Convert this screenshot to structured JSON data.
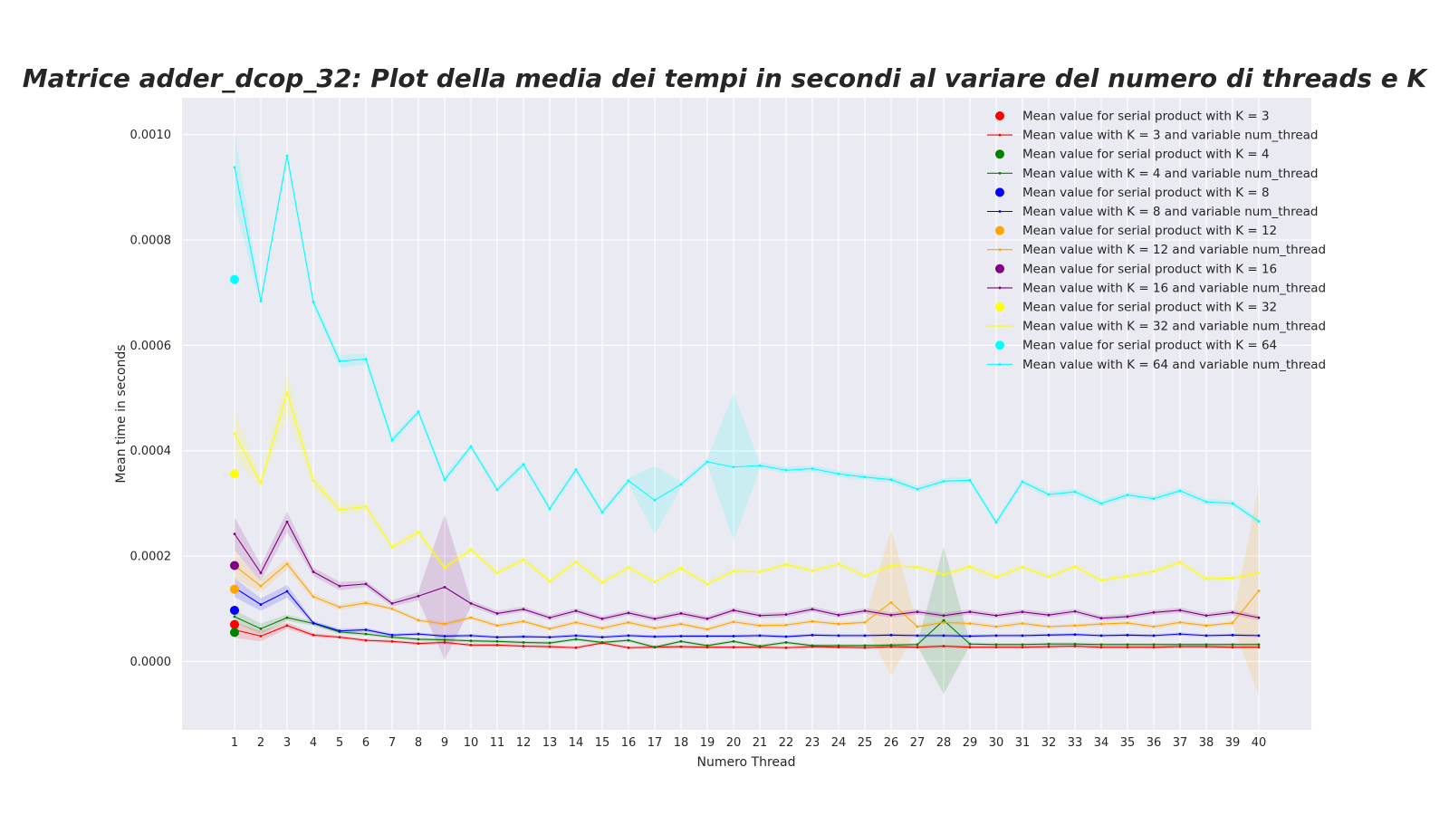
{
  "chart_data": {
    "type": "line",
    "title": "Matrice adder_dcop_32: Plot della media dei tempi in secondi al variare del numero di threads e K",
    "xlabel": "Numero Thread",
    "ylabel": "Mean time in seconds",
    "xlim": [
      -1,
      42
    ],
    "ylim": [
      -0.00013,
      0.00107
    ],
    "yticks": [
      0.0,
      0.0002,
      0.0004,
      0.0006,
      0.0008,
      0.001
    ],
    "ytick_labels": [
      "0.0000",
      "0.0002",
      "0.0004",
      "0.0006",
      "0.0008",
      "0.0010"
    ],
    "x": [
      1,
      2,
      3,
      4,
      5,
      6,
      7,
      8,
      9,
      10,
      11,
      12,
      13,
      14,
      15,
      16,
      17,
      18,
      19,
      20,
      21,
      22,
      23,
      24,
      25,
      26,
      27,
      28,
      29,
      30,
      31,
      32,
      33,
      34,
      35,
      36,
      37,
      38,
      39,
      40
    ],
    "grid": true,
    "legend_position": "top-right",
    "serial": [
      {
        "name": "Mean value for serial product with K = 3",
        "color": "#ff0000",
        "x": 1,
        "y": 7e-05
      },
      {
        "name": "Mean value for serial product with K = 4",
        "color": "#008000",
        "x": 1,
        "y": 5.5e-05
      },
      {
        "name": "Mean value for serial product with K = 8",
        "color": "#0000ff",
        "x": 1,
        "y": 9.7e-05
      },
      {
        "name": "Mean value for serial product with K = 12",
        "color": "#ffa500",
        "x": 1,
        "y": 0.000137
      },
      {
        "name": "Mean value for serial product with K = 16",
        "color": "#800080",
        "x": 1,
        "y": 0.000182
      },
      {
        "name": "Mean value for serial product with K = 32",
        "color": "#ffff00",
        "x": 1,
        "y": 0.000356
      },
      {
        "name": "Mean value for serial product with K = 64",
        "color": "#00ffff",
        "x": 1,
        "y": 0.000725
      }
    ],
    "series": [
      {
        "name": "Mean value with K = 3 and variable num_thread",
        "color": "#ff0000",
        "values": [
          6e-05,
          4.8e-05,
          6.8e-05,
          5e-05,
          4.6e-05,
          4e-05,
          3.8e-05,
          3.4e-05,
          3.6e-05,
          3.1e-05,
          3.1e-05,
          2.9e-05,
          2.8e-05,
          2.6e-05,
          3.5e-05,
          2.6e-05,
          2.7e-05,
          2.8e-05,
          2.7e-05,
          2.7e-05,
          2.7e-05,
          2.6e-05,
          2.8e-05,
          2.7e-05,
          2.6e-05,
          2.8e-05,
          2.7e-05,
          2.9e-05,
          2.7e-05,
          2.7e-05,
          2.7e-05,
          2.8e-05,
          2.9e-05,
          2.7e-05,
          2.7e-05,
          2.7e-05,
          2.8e-05,
          2.8e-05,
          2.7e-05,
          2.7e-05
        ],
        "band": [
          1.5e-05,
          1e-05,
          6e-06,
          4e-06,
          3e-06,
          3e-06,
          3e-06,
          3e-06,
          3e-06,
          3e-06,
          3e-06,
          3e-06,
          3e-06,
          3e-06,
          3e-06,
          3e-06,
          3e-06,
          3e-06,
          3e-06,
          3e-06,
          3e-06,
          3e-06,
          3e-06,
          3e-06,
          3e-06,
          3e-06,
          3e-06,
          3e-06,
          3e-06,
          3e-06,
          3e-06,
          3e-06,
          3e-06,
          3e-06,
          3e-06,
          3e-06,
          3e-06,
          3e-06,
          3e-06,
          3e-06
        ]
      },
      {
        "name": "Mean value with K = 4 and variable num_thread",
        "color": "#008000",
        "values": [
          8.5e-05,
          6.2e-05,
          8.3e-05,
          7.2e-05,
          5.6e-05,
          5.2e-05,
          4.6e-05,
          4.2e-05,
          4.1e-05,
          3.9e-05,
          3.8e-05,
          3.6e-05,
          3.5e-05,
          4.2e-05,
          3.6e-05,
          4e-05,
          2.7e-05,
          3.8e-05,
          3e-05,
          3.8e-05,
          2.9e-05,
          3.6e-05,
          3e-05,
          3e-05,
          3e-05,
          3.1e-05,
          3.2e-05,
          7.8e-05,
          3.3e-05,
          3.2e-05,
          3.2e-05,
          3.3e-05,
          3.3e-05,
          3.2e-05,
          3.2e-05,
          3.2e-05,
          3.2e-05,
          3.2e-05,
          3.2e-05,
          3.2e-05
        ],
        "band": [
          1.2e-05,
          1e-05,
          6e-06,
          4e-06,
          4e-06,
          3e-06,
          3e-06,
          3e-06,
          3e-06,
          3e-06,
          3e-06,
          3e-06,
          3e-06,
          3e-06,
          3e-06,
          3e-06,
          3e-06,
          3e-06,
          3e-06,
          3e-06,
          3e-06,
          3e-06,
          3e-06,
          3e-06,
          3e-06,
          3e-06,
          3e-06,
          0.00014,
          3e-06,
          3e-06,
          3e-06,
          3e-06,
          3e-06,
          3e-06,
          3e-06,
          3e-06,
          3e-06,
          3e-06,
          3e-06,
          3e-06
        ]
      },
      {
        "name": "Mean value with K = 8 and variable num_thread",
        "color": "#0000ff",
        "values": [
          0.00014,
          0.000108,
          0.000133,
          7.3e-05,
          5.8e-05,
          6e-05,
          5e-05,
          5.2e-05,
          4.8e-05,
          4.9e-05,
          4.6e-05,
          4.7e-05,
          4.6e-05,
          4.9e-05,
          4.6e-05,
          4.9e-05,
          4.7e-05,
          4.8e-05,
          4.8e-05,
          4.8e-05,
          4.9e-05,
          4.7e-05,
          5e-05,
          4.9e-05,
          4.9e-05,
          5e-05,
          4.9e-05,
          4.9e-05,
          4.8e-05,
          4.9e-05,
          4.9e-05,
          5e-05,
          5.1e-05,
          4.9e-05,
          5e-05,
          4.9e-05,
          5.2e-05,
          4.9e-05,
          5e-05,
          4.9e-05
        ],
        "band": [
          1.8e-05,
          1.2e-05,
          1.2e-05,
          4e-06,
          4e-06,
          4e-06,
          3e-06,
          3e-06,
          3e-06,
          3e-06,
          3e-06,
          3e-06,
          3e-06,
          3e-06,
          3e-06,
          3e-06,
          3e-06,
          3e-06,
          3e-06,
          3e-06,
          3e-06,
          3e-06,
          3e-06,
          3e-06,
          3e-06,
          3e-06,
          3e-06,
          3e-06,
          3e-06,
          3e-06,
          3e-06,
          3e-06,
          3e-06,
          3e-06,
          3e-06,
          3e-06,
          3e-06,
          3e-06,
          3e-06,
          3e-06
        ]
      },
      {
        "name": "Mean value with K = 12 and variable num_thread",
        "color": "#ffa500",
        "values": [
          0.000182,
          0.000143,
          0.000185,
          0.000123,
          0.000103,
          0.000111,
          0.0001,
          7.8e-05,
          7.1e-05,
          8.3e-05,
          6.8e-05,
          7.6e-05,
          6.2e-05,
          7.4e-05,
          6.3e-05,
          7.4e-05,
          6.3e-05,
          7.1e-05,
          6.1e-05,
          7.5e-05,
          6.8e-05,
          6.9e-05,
          7.6e-05,
          7.1e-05,
          7.4e-05,
          0.000112,
          6.6e-05,
          7.4e-05,
          7.2e-05,
          6.6e-05,
          7.2e-05,
          6.6e-05,
          6.8e-05,
          7.1e-05,
          7.3e-05,
          6.6e-05,
          7.4e-05,
          6.8e-05,
          7.3e-05,
          0.000134
        ],
        "band": [
          2.5e-05,
          1.2e-05,
          1e-05,
          6e-06,
          5e-06,
          5e-06,
          4e-06,
          4e-06,
          4e-06,
          4e-06,
          4e-06,
          4e-06,
          4e-06,
          4e-06,
          4e-06,
          4e-06,
          4e-06,
          4e-06,
          4e-06,
          4e-06,
          4e-06,
          4e-06,
          4e-06,
          4e-06,
          4e-06,
          0.00014,
          4e-06,
          4e-06,
          4e-06,
          4e-06,
          4e-06,
          4e-06,
          4e-06,
          4e-06,
          4e-06,
          4e-06,
          4e-06,
          4e-06,
          4e-06,
          0.0002
        ]
      },
      {
        "name": "Mean value with K = 16 and variable num_thread",
        "color": "#800080",
        "values": [
          0.000242,
          0.000168,
          0.000265,
          0.00017,
          0.000143,
          0.000147,
          0.00011,
          0.000124,
          0.000141,
          0.00011,
          9.1e-05,
          9.9e-05,
          8.3e-05,
          9.6e-05,
          8.1e-05,
          9.2e-05,
          8.1e-05,
          9.1e-05,
          8.1e-05,
          9.7e-05,
          8.7e-05,
          8.9e-05,
          9.9e-05,
          8.8e-05,
          9.6e-05,
          8.8e-05,
          9.4e-05,
          8.7e-05,
          9.4e-05,
          8.7e-05,
          9.4e-05,
          8.8e-05,
          9.5e-05,
          8.2e-05,
          8.5e-05,
          9.3e-05,
          9.7e-05,
          8.7e-05,
          9.3e-05,
          8.3e-05
        ],
        "band": [
          3.2e-05,
          1.5e-05,
          2e-05,
          8e-06,
          8e-06,
          6e-06,
          6e-06,
          8e-06,
          0.000138,
          6e-06,
          5e-06,
          5e-06,
          5e-06,
          5e-06,
          5e-06,
          5e-06,
          5e-06,
          5e-06,
          5e-06,
          5e-06,
          5e-06,
          5e-06,
          5e-06,
          5e-06,
          5e-06,
          5e-06,
          5e-06,
          5e-06,
          5e-06,
          5e-06,
          5e-06,
          5e-06,
          5e-06,
          5e-06,
          5e-06,
          5e-06,
          5e-06,
          5e-06,
          5e-06,
          5e-06
        ]
      },
      {
        "name": "Mean value with K = 32 and variable num_thread",
        "color": "#ffff00",
        "values": [
          0.000432,
          0.000339,
          0.00051,
          0.000343,
          0.000288,
          0.000294,
          0.000217,
          0.000245,
          0.000178,
          0.000212,
          0.000168,
          0.000193,
          0.000152,
          0.000189,
          0.00015,
          0.000178,
          0.000151,
          0.000177,
          0.000147,
          0.000171,
          0.00017,
          0.000184,
          0.000172,
          0.000185,
          0.000162,
          0.000182,
          0.000179,
          0.000165,
          0.00018,
          0.00016,
          0.000179,
          0.000161,
          0.00018,
          0.000154,
          0.000162,
          0.000171,
          0.000188,
          0.000157,
          0.000158,
          0.000168
        ],
        "band": [
          4.5e-05,
          1e-05,
          4e-05,
          1.2e-05,
          1e-05,
          8e-06,
          6e-06,
          8e-06,
          8e-06,
          6e-06,
          5e-06,
          5e-06,
          5e-06,
          5e-06,
          5e-06,
          5e-06,
          5e-06,
          5e-06,
          5e-06,
          5e-06,
          5e-06,
          5e-06,
          5e-06,
          5e-06,
          5e-06,
          5e-06,
          5e-06,
          5e-06,
          5e-06,
          5e-06,
          5e-06,
          5e-06,
          5e-06,
          5e-06,
          5e-06,
          5e-06,
          5e-06,
          5e-06,
          5e-06,
          5e-06
        ]
      },
      {
        "name": "Mean value with K = 64 and variable num_thread",
        "color": "#00ffff",
        "values": [
          0.000938,
          0.000684,
          0.00096,
          0.000682,
          0.00057,
          0.000574,
          0.00042,
          0.000474,
          0.000345,
          0.000408,
          0.000326,
          0.000374,
          0.00029,
          0.000364,
          0.000283,
          0.000343,
          0.000306,
          0.000336,
          0.000379,
          0.000369,
          0.000372,
          0.000363,
          0.000366,
          0.000356,
          0.00035,
          0.000345,
          0.000327,
          0.000342,
          0.000344,
          0.000264,
          0.000341,
          0.000317,
          0.000322,
          0.0003,
          0.000316,
          0.000309,
          0.000324,
          0.000303,
          0.0003,
          0.000266
        ],
        "band": [
          7e-05,
          8e-06,
          1e-05,
          8e-06,
          1.2e-05,
          1e-05,
          8e-06,
          6e-06,
          8e-06,
          6e-06,
          6e-06,
          6e-06,
          6e-06,
          6e-06,
          6e-06,
          6e-06,
          6.5e-05,
          6e-06,
          6e-06,
          0.00014,
          6e-06,
          6e-06,
          6e-06,
          6e-06,
          6e-06,
          6e-06,
          6e-06,
          6e-06,
          6e-06,
          6e-06,
          6e-06,
          6e-06,
          6e-06,
          6e-06,
          6e-06,
          6e-06,
          6e-06,
          6e-06,
          6e-06,
          6e-06
        ]
      }
    ]
  }
}
